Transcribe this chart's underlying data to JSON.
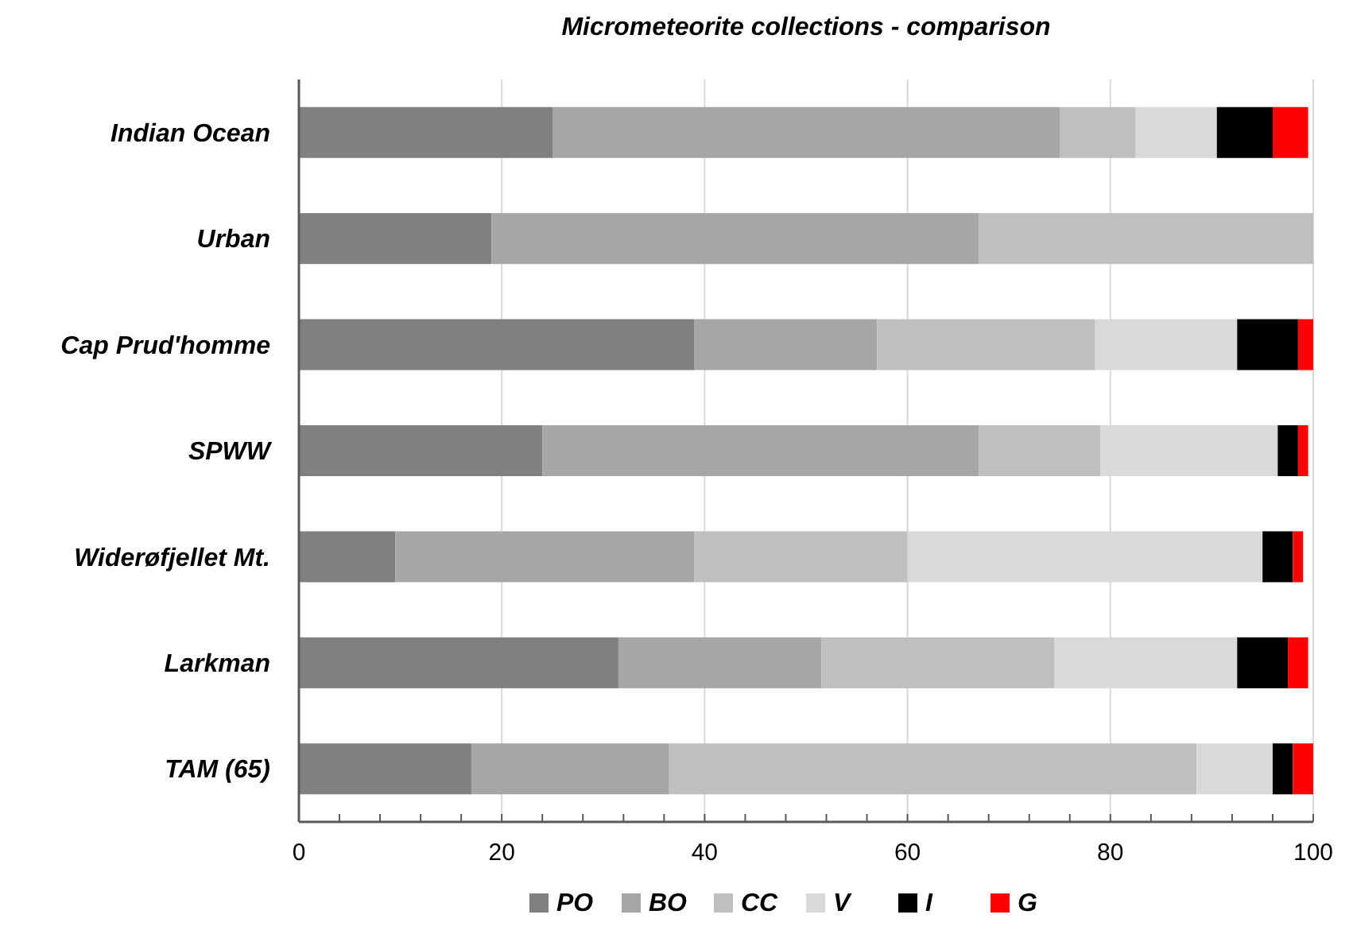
{
  "chart_data": {
    "type": "bar",
    "orientation": "horizontal",
    "stacked": true,
    "title": "Micrometeorite collections - comparison",
    "categories": [
      "Indian Ocean",
      "Urban",
      "Cap Prud'homme",
      "SPWW",
      "Widerøfjellet Mt.",
      "Larkman",
      "TAM (65)"
    ],
    "series": [
      {
        "name": "PO",
        "color": "#808080",
        "values": [
          25,
          19,
          39,
          24,
          9.5,
          31.5,
          17
        ]
      },
      {
        "name": "BO",
        "color": "#a6a6a6",
        "values": [
          50,
          48,
          18,
          43,
          29.5,
          20,
          19.5
        ]
      },
      {
        "name": "CC",
        "color": "#bfbfbf",
        "values": [
          7.5,
          33,
          21.5,
          12,
          21,
          23,
          52
        ]
      },
      {
        "name": "V",
        "color": "#d9d9d9",
        "values": [
          8,
          0,
          14,
          17.5,
          35,
          18,
          7.5
        ]
      },
      {
        "name": "I",
        "color": "#000000",
        "values": [
          5.5,
          0,
          6,
          2,
          3,
          5,
          2
        ]
      },
      {
        "name": "G",
        "color": "#ff0000",
        "values": [
          3.5,
          0,
          1.5,
          1,
          1,
          2,
          2
        ]
      }
    ],
    "xlim": [
      0,
      100
    ],
    "xticks": [
      0,
      {
        "value": 4,
        "label": null
      },
      {
        "value": 8,
        "label": null
      },
      {
        "value": 12,
        "label": null
      },
      {
        "value": 16,
        "label": null
      },
      20,
      {
        "value": 24,
        "label": null
      },
      {
        "value": 28,
        "label": null
      },
      {
        "value": 32,
        "label": null
      },
      {
        "value": 36,
        "label": null
      },
      40,
      {
        "value": 44,
        "label": null
      },
      {
        "value": 48,
        "label": null
      },
      {
        "value": 52,
        "label": null
      },
      {
        "value": 56,
        "label": null
      },
      60,
      {
        "value": 64,
        "label": null
      },
      {
        "value": 68,
        "label": null
      },
      {
        "value": 72,
        "label": null
      },
      {
        "value": 76,
        "label": null
      },
      80,
      {
        "value": 84,
        "label": null
      },
      {
        "value": 88,
        "label": null
      },
      {
        "value": 92,
        "label": null
      },
      {
        "value": 96,
        "label": null
      },
      100
    ],
    "grid": "x",
    "legend": "bottom"
  }
}
